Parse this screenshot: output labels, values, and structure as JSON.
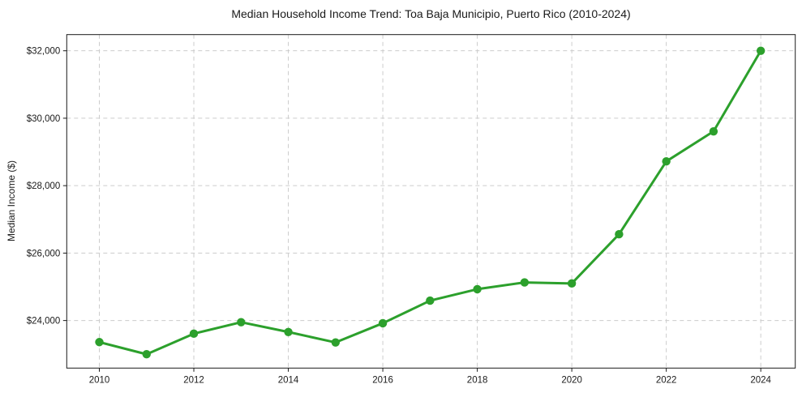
{
  "chart_data": {
    "type": "line",
    "title": "Median Household Income Trend: Toa Baja Municipio, Puerto Rico (2010-2024)",
    "xlabel": "",
    "ylabel": "Median Income ($)",
    "x": [
      2010,
      2011,
      2012,
      2013,
      2014,
      2015,
      2016,
      2017,
      2018,
      2019,
      2020,
      2021,
      2022,
      2023,
      2024
    ],
    "series": [
      {
        "name": "Median Household Income",
        "values": [
          23360,
          23000,
          23610,
          23950,
          23660,
          23350,
          23920,
          24590,
          24930,
          25130,
          25100,
          26560,
          28720,
          29610,
          32000
        ]
      }
    ],
    "x_ticks": [
      2010,
      2012,
      2014,
      2016,
      2018,
      2020,
      2022,
      2024
    ],
    "x_tick_labels": [
      "2010",
      "2012",
      "2014",
      "2016",
      "2018",
      "2020",
      "2022",
      "2024"
    ],
    "y_ticks": [
      24000,
      26000,
      28000,
      30000,
      32000
    ],
    "y_tick_labels": [
      "$24,000",
      "$26,000",
      "$28,000",
      "$30,000",
      "$32,000"
    ],
    "xlim": [
      2009.31,
      2024.73
    ],
    "ylim": [
      22590,
      32480
    ],
    "grid": "on",
    "grid_style": "dashed",
    "legend": "none",
    "line_color": "#2ca02c",
    "marker": "circle",
    "marker_color": "#2ca02c",
    "grid_color": "#cccccc",
    "axis_color": "#1a1a1a",
    "background_color": "#ffffff"
  }
}
